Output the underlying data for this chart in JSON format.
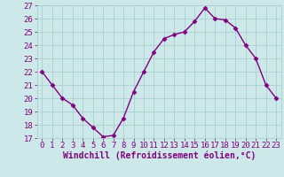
{
  "x": [
    0,
    1,
    2,
    3,
    4,
    5,
    6,
    7,
    8,
    9,
    10,
    11,
    12,
    13,
    14,
    15,
    16,
    17,
    18,
    19,
    20,
    21,
    22,
    23
  ],
  "y": [
    22.0,
    21.0,
    20.0,
    19.5,
    18.5,
    17.8,
    17.1,
    17.2,
    18.5,
    20.5,
    22.0,
    23.5,
    24.5,
    24.8,
    25.0,
    25.8,
    26.8,
    26.0,
    25.9,
    25.3,
    24.0,
    23.0,
    21.0,
    20.0
  ],
  "ylim": [
    17,
    27
  ],
  "xlim_min": -0.5,
  "xlim_max": 23.5,
  "yticks": [
    17,
    18,
    19,
    20,
    21,
    22,
    23,
    24,
    25,
    26,
    27
  ],
  "xticks": [
    0,
    1,
    2,
    3,
    4,
    5,
    6,
    7,
    8,
    9,
    10,
    11,
    12,
    13,
    14,
    15,
    16,
    17,
    18,
    19,
    20,
    21,
    22,
    23
  ],
  "xlabel": "Windchill (Refroidissement éolien,°C)",
  "line_color": "#800080",
  "marker_color": "#800080",
  "bg_color": "#cce8e8",
  "grid_color": "#aacece",
  "axis_label_color": "#800080",
  "tick_label_color": "#800080",
  "marker": "D",
  "marker_size": 2.5,
  "line_width": 1.0,
  "tick_fontsize": 6.5,
  "xlabel_fontsize": 7.0
}
